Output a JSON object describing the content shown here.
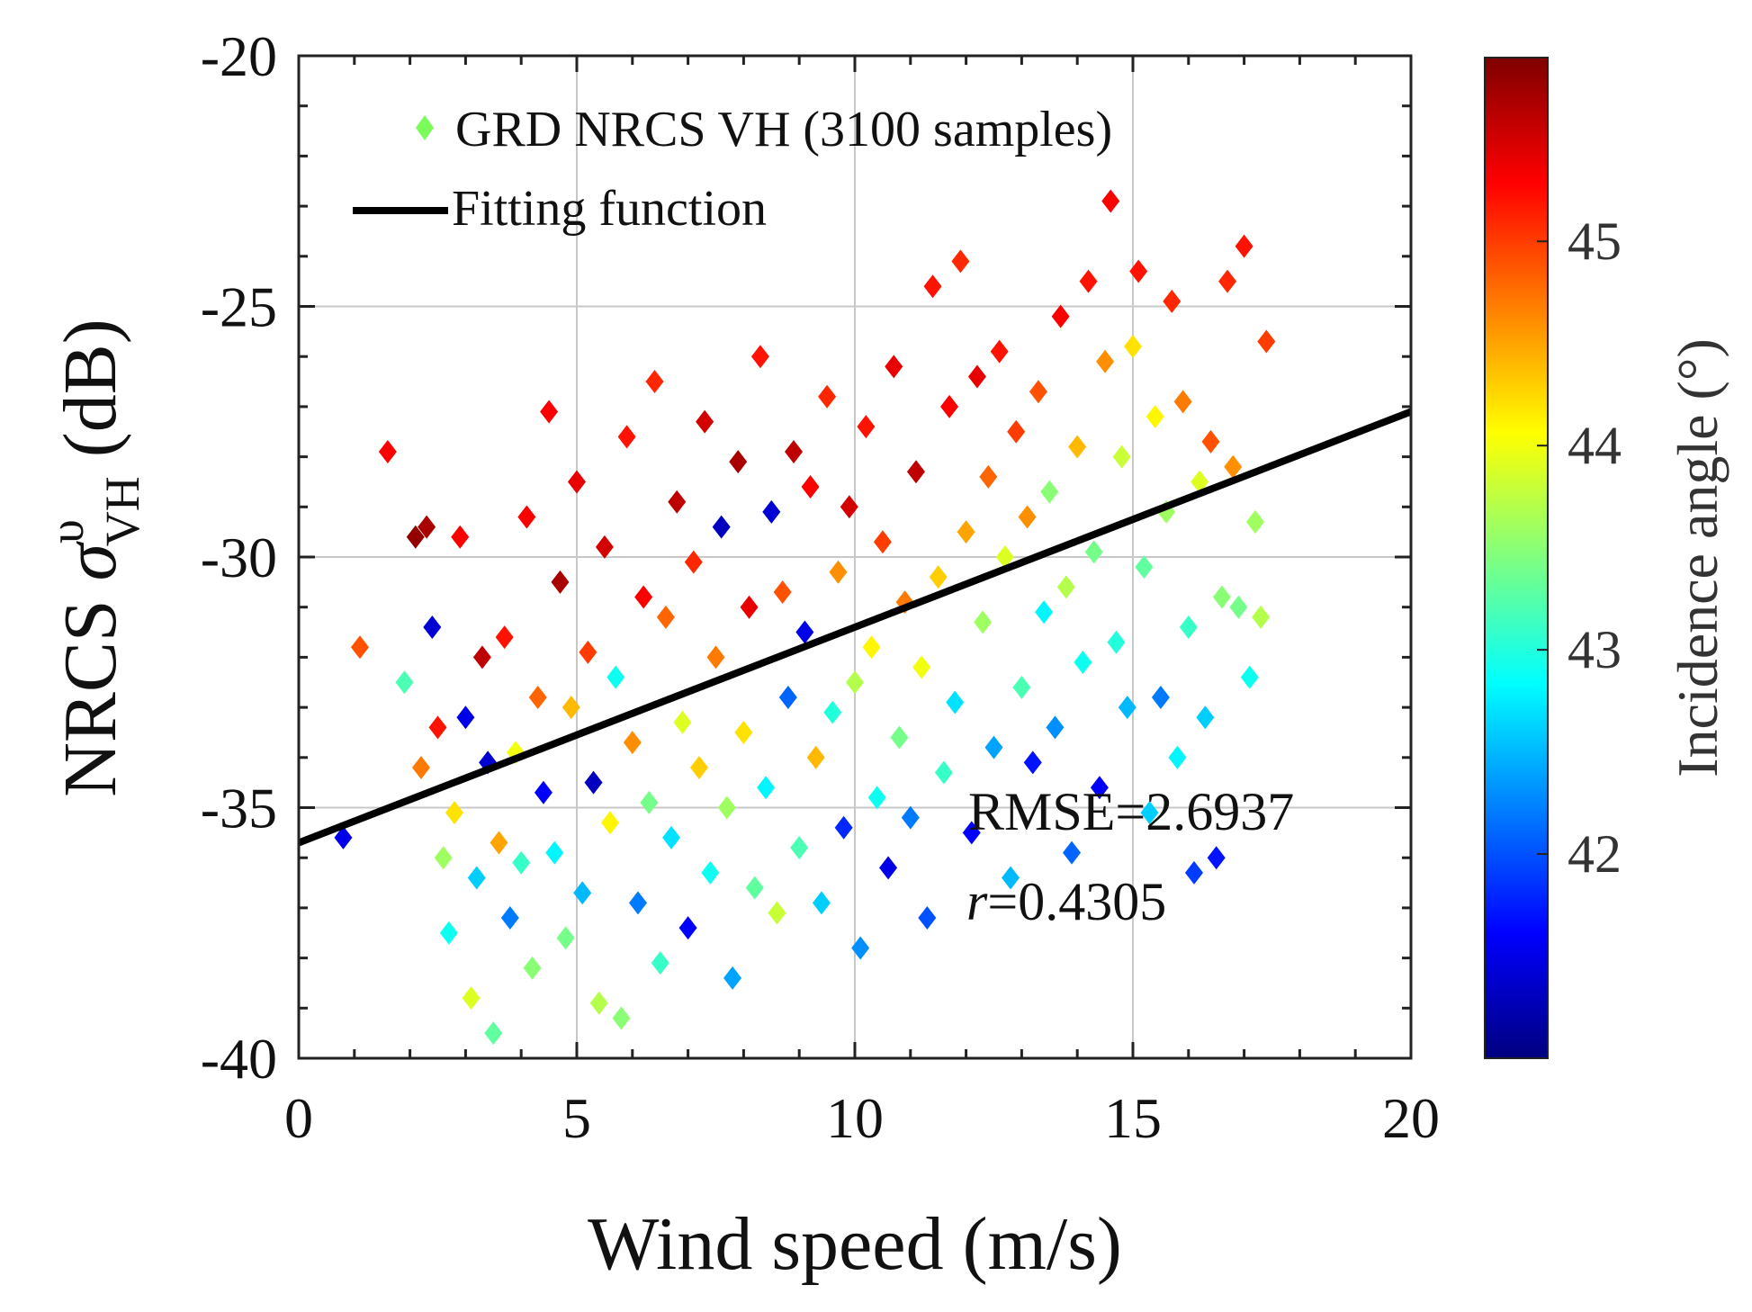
{
  "chart_data": {
    "type": "scatter",
    "xlabel": "Wind speed (m/s)",
    "ylabel": {
      "prefix": "NRCS ",
      "symbol": "σ",
      "superscript": "υ",
      "subscript": "VH",
      "suffix": " (dB)"
    },
    "xlim": [
      0,
      20
    ],
    "ylim": [
      -40,
      -20
    ],
    "xticks": [
      "0",
      "5",
      "10",
      "15",
      "20"
    ],
    "yticks": [
      "-40",
      "-35",
      "-30",
      "-25",
      "-20"
    ],
    "xtick_values": [
      0,
      5,
      10,
      15,
      20
    ],
    "ytick_values": [
      -40,
      -35,
      -30,
      -25,
      -20
    ],
    "grid": true,
    "legend": {
      "position": "top-left",
      "entries": [
        {
          "label": "GRD NRCS VH (3100 samples)",
          "marker": "diamond",
          "color": "#7cfc5a"
        },
        {
          "label": "Fitting function",
          "marker": "line",
          "color": "#000000"
        }
      ]
    },
    "fit_line": {
      "x": [
        0,
        20
      ],
      "y": [
        -35.7,
        -27.1
      ]
    },
    "annotations": [
      {
        "text": "RMSE=2.6937"
      },
      {
        "text_var": "r",
        "text_val": "=0.4305"
      }
    ],
    "colorbar": {
      "label": "Incidence angle (°)",
      "range": [
        41.0,
        45.9
      ],
      "ticks": [
        "42",
        "43",
        "44",
        "45"
      ],
      "tick_values": [
        42,
        43,
        44,
        45
      ],
      "colormap": "jet"
    },
    "series": [
      {
        "name": "GRD NRCS VH (3100 samples)",
        "marker": "diamond",
        "points": [
          [
            0.8,
            -35.6,
            41.5
          ],
          [
            1.1,
            -31.8,
            44.9
          ],
          [
            1.6,
            -27.9,
            45.3
          ],
          [
            1.9,
            -32.5,
            43.2
          ],
          [
            2.1,
            -29.6,
            45.8
          ],
          [
            2.2,
            -34.2,
            44.7
          ],
          [
            2.3,
            -29.4,
            45.7
          ],
          [
            2.4,
            -31.4,
            41.4
          ],
          [
            2.5,
            -33.4,
            45.2
          ],
          [
            2.6,
            -36.0,
            43.6
          ],
          [
            2.7,
            -37.5,
            42.9
          ],
          [
            2.8,
            -35.1,
            44.2
          ],
          [
            2.9,
            -29.6,
            45.3
          ],
          [
            3.0,
            -33.2,
            41.5
          ],
          [
            3.1,
            -38.8,
            43.9
          ],
          [
            3.2,
            -36.4,
            42.6
          ],
          [
            3.3,
            -32.0,
            45.6
          ],
          [
            3.4,
            -34.1,
            41.4
          ],
          [
            3.5,
            -39.5,
            43.3
          ],
          [
            3.6,
            -35.7,
            44.5
          ],
          [
            3.7,
            -31.6,
            45.2
          ],
          [
            3.8,
            -37.2,
            42.2
          ],
          [
            3.9,
            -33.9,
            44.0
          ],
          [
            4.0,
            -36.1,
            43.1
          ],
          [
            4.1,
            -29.2,
            45.3
          ],
          [
            4.2,
            -38.2,
            43.5
          ],
          [
            4.3,
            -32.8,
            44.8
          ],
          [
            4.4,
            -34.7,
            41.6
          ],
          [
            4.5,
            -27.1,
            45.3
          ],
          [
            4.6,
            -35.9,
            42.8
          ],
          [
            4.7,
            -30.5,
            45.7
          ],
          [
            4.8,
            -37.6,
            43.4
          ],
          [
            4.9,
            -33.0,
            44.4
          ],
          [
            5.0,
            -28.5,
            45.4
          ],
          [
            5.1,
            -36.7,
            42.5
          ],
          [
            5.2,
            -31.9,
            45.0
          ],
          [
            5.3,
            -34.5,
            41.3
          ],
          [
            5.4,
            -38.9,
            43.7
          ],
          [
            5.5,
            -29.8,
            45.5
          ],
          [
            5.6,
            -35.3,
            44.1
          ],
          [
            5.7,
            -32.4,
            42.9
          ],
          [
            5.8,
            -39.2,
            43.5
          ],
          [
            5.9,
            -27.6,
            45.2
          ],
          [
            6.0,
            -33.7,
            44.6
          ],
          [
            6.1,
            -36.9,
            42.2
          ],
          [
            6.2,
            -30.8,
            45.3
          ],
          [
            6.3,
            -34.9,
            43.4
          ],
          [
            6.4,
            -26.5,
            45.1
          ],
          [
            6.5,
            -38.1,
            43.1
          ],
          [
            6.6,
            -31.2,
            44.8
          ],
          [
            6.7,
            -35.6,
            42.7
          ],
          [
            6.8,
            -28.9,
            45.6
          ],
          [
            6.9,
            -33.3,
            43.9
          ],
          [
            7.0,
            -37.4,
            41.6
          ],
          [
            7.1,
            -30.1,
            45.1
          ],
          [
            7.2,
            -34.2,
            44.3
          ],
          [
            7.3,
            -27.3,
            45.5
          ],
          [
            7.4,
            -36.3,
            42.9
          ],
          [
            7.5,
            -32.0,
            44.7
          ],
          [
            7.6,
            -29.4,
            41.3
          ],
          [
            7.7,
            -35.0,
            43.6
          ],
          [
            7.8,
            -38.4,
            42.4
          ],
          [
            7.9,
            -28.1,
            45.7
          ],
          [
            8.0,
            -33.5,
            44.2
          ],
          [
            8.1,
            -31.0,
            45.4
          ],
          [
            8.2,
            -36.6,
            43.3
          ],
          [
            8.3,
            -26.0,
            45.2
          ],
          [
            8.4,
            -34.6,
            42.8
          ],
          [
            8.5,
            -29.1,
            41.4
          ],
          [
            8.6,
            -37.1,
            43.8
          ],
          [
            8.7,
            -30.7,
            44.9
          ],
          [
            8.8,
            -32.8,
            42.1
          ],
          [
            8.9,
            -27.9,
            45.6
          ],
          [
            9.0,
            -35.8,
            43.2
          ],
          [
            9.1,
            -31.5,
            41.5
          ],
          [
            9.2,
            -28.6,
            45.3
          ],
          [
            9.3,
            -34.0,
            44.4
          ],
          [
            9.4,
            -36.9,
            42.6
          ],
          [
            9.5,
            -26.8,
            45.1
          ],
          [
            9.6,
            -33.1,
            43.0
          ],
          [
            9.7,
            -30.3,
            44.6
          ],
          [
            9.8,
            -35.4,
            41.8
          ],
          [
            9.9,
            -29.0,
            45.5
          ],
          [
            10.0,
            -32.5,
            43.7
          ],
          [
            10.1,
            -37.8,
            42.3
          ],
          [
            10.2,
            -27.4,
            45.2
          ],
          [
            10.3,
            -31.8,
            44.1
          ],
          [
            10.4,
            -34.8,
            42.9
          ],
          [
            10.5,
            -29.7,
            45.0
          ],
          [
            10.6,
            -36.2,
            41.5
          ],
          [
            10.7,
            -26.2,
            45.4
          ],
          [
            10.8,
            -33.6,
            43.4
          ],
          [
            10.9,
            -30.9,
            44.7
          ],
          [
            11.0,
            -35.2,
            42.2
          ],
          [
            11.1,
            -28.3,
            45.6
          ],
          [
            11.2,
            -32.2,
            44.0
          ],
          [
            11.3,
            -37.2,
            42.0
          ],
          [
            11.4,
            -24.6,
            45.2
          ],
          [
            11.5,
            -30.4,
            44.3
          ],
          [
            11.6,
            -34.3,
            43.1
          ],
          [
            11.7,
            -27.0,
            45.3
          ],
          [
            11.8,
            -32.9,
            42.7
          ],
          [
            11.9,
            -24.1,
            45.1
          ],
          [
            12.0,
            -29.5,
            44.5
          ],
          [
            12.1,
            -35.5,
            41.6
          ],
          [
            12.2,
            -26.4,
            45.4
          ],
          [
            12.3,
            -31.3,
            43.6
          ],
          [
            12.4,
            -28.4,
            44.8
          ],
          [
            12.5,
            -33.8,
            42.4
          ],
          [
            12.6,
            -25.9,
            45.2
          ],
          [
            12.7,
            -30.0,
            43.9
          ],
          [
            12.8,
            -36.4,
            42.5
          ],
          [
            12.9,
            -27.5,
            45.0
          ],
          [
            13.0,
            -32.6,
            43.2
          ],
          [
            13.1,
            -29.2,
            44.6
          ],
          [
            13.2,
            -34.1,
            41.7
          ],
          [
            13.3,
            -26.7,
            44.9
          ],
          [
            13.4,
            -31.1,
            42.8
          ],
          [
            13.5,
            -28.7,
            43.5
          ],
          [
            13.6,
            -33.4,
            42.3
          ],
          [
            13.7,
            -25.2,
            45.3
          ],
          [
            13.8,
            -30.6,
            43.7
          ],
          [
            13.9,
            -35.9,
            42.1
          ],
          [
            14.0,
            -27.8,
            44.4
          ],
          [
            14.1,
            -32.1,
            42.9
          ],
          [
            14.2,
            -24.5,
            45.2
          ],
          [
            14.3,
            -29.9,
            43.4
          ],
          [
            14.4,
            -34.6,
            41.6
          ],
          [
            14.5,
            -26.1,
            44.6
          ],
          [
            14.6,
            -22.9,
            45.3
          ],
          [
            14.7,
            -31.7,
            43.0
          ],
          [
            14.8,
            -28.0,
            43.8
          ],
          [
            14.9,
            -33.0,
            42.5
          ],
          [
            15.0,
            -25.8,
            44.2
          ],
          [
            15.1,
            -24.3,
            45.2
          ],
          [
            15.2,
            -30.2,
            43.3
          ],
          [
            15.3,
            -35.1,
            42.6
          ],
          [
            15.4,
            -27.2,
            44.1
          ],
          [
            15.5,
            -32.8,
            42.2
          ],
          [
            15.6,
            -29.1,
            43.6
          ],
          [
            15.7,
            -24.9,
            45.1
          ],
          [
            15.8,
            -34.0,
            42.8
          ],
          [
            15.9,
            -26.9,
            44.7
          ],
          [
            16.0,
            -31.4,
            43.1
          ],
          [
            16.1,
            -36.3,
            41.9
          ],
          [
            16.2,
            -28.5,
            43.9
          ],
          [
            16.3,
            -33.2,
            42.6
          ],
          [
            16.4,
            -27.7,
            44.9
          ],
          [
            16.5,
            -36.0,
            41.7
          ],
          [
            16.6,
            -30.8,
            43.5
          ],
          [
            16.7,
            -24.5,
            45.1
          ],
          [
            16.8,
            -28.2,
            44.6
          ],
          [
            16.9,
            -31.0,
            43.4
          ],
          [
            17.0,
            -23.8,
            45.2
          ],
          [
            17.1,
            -32.4,
            42.9
          ],
          [
            17.2,
            -29.3,
            43.6
          ],
          [
            17.3,
            -31.2,
            43.7
          ],
          [
            17.4,
            -25.7,
            45.0
          ]
        ]
      }
    ]
  }
}
